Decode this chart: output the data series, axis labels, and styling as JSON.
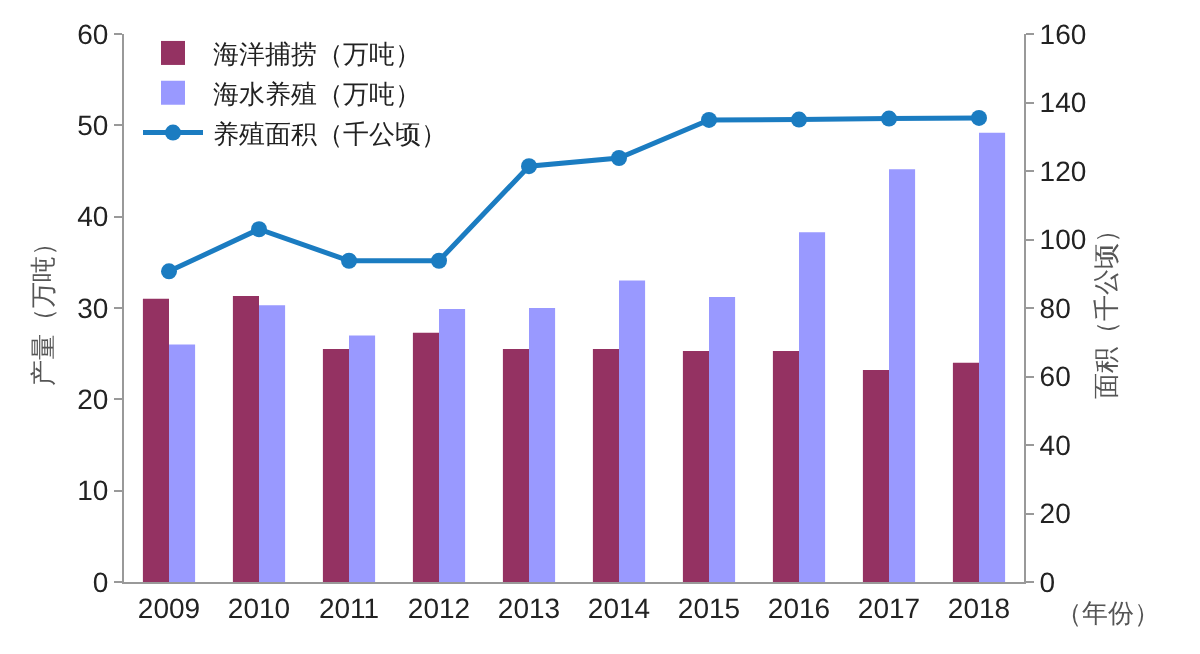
{
  "chart_data": {
    "type": "bar",
    "xlabel": "（年份）",
    "ylabel": "产量（万吨）",
    "y2label": "面积（千公顷）",
    "categories": [
      "2009",
      "2010",
      "2011",
      "2012",
      "2013",
      "2014",
      "2015",
      "2016",
      "2017",
      "2018"
    ],
    "series": [
      {
        "name": "海洋捕捞（万吨）",
        "color": "#943262",
        "values": [
          31,
          31.3,
          25.5,
          27.3,
          25.5,
          25.5,
          25.3,
          25.3,
          23.2,
          24
        ]
      },
      {
        "name": "海水养殖（万吨）",
        "color": "#9999ff",
        "values": [
          26,
          30.3,
          27,
          29.9,
          30,
          33,
          31.2,
          38.3,
          45.2,
          49.2
        ]
      },
      {
        "name": "养殖面积（千公顷）",
        "type": "line",
        "axis": "y2",
        "color": "#1b7cc1",
        "marker": "circle",
        "line_style": "solid",
        "values": [
          90.7,
          103,
          93.8,
          93.8,
          121.4,
          123.8,
          134.9,
          135,
          135.3,
          135.5
        ]
      }
    ],
    "ylim": [
      0,
      60
    ],
    "yticks": [
      0,
      10,
      20,
      30,
      40,
      50,
      60
    ],
    "y2lim": [
      0,
      160
    ],
    "y2ticks": [
      0,
      20,
      40,
      60,
      80,
      100,
      120,
      140,
      160
    ],
    "grid": false,
    "legend": "top left"
  }
}
